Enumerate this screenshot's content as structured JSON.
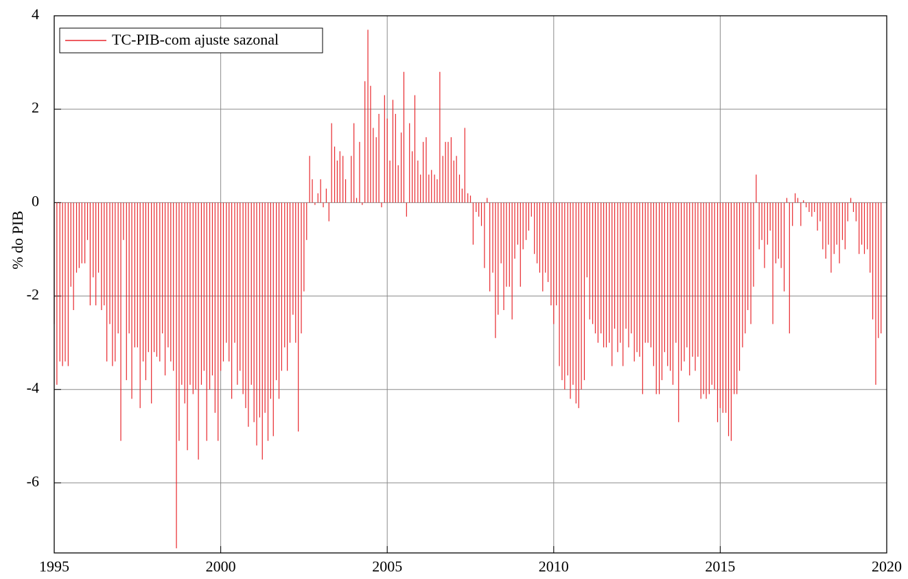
{
  "chart_data": {
    "type": "bar",
    "ylabel": "% do PIB",
    "x": [
      1995,
      1995.08,
      1995.17,
      1995.25,
      1995.33,
      1995.42,
      1995.5,
      1995.58,
      1995.67,
      1995.75,
      1995.83,
      1995.92,
      1996,
      1996.08,
      1996.17,
      1996.25,
      1996.33,
      1996.42,
      1996.5,
      1996.58,
      1996.67,
      1996.75,
      1996.83,
      1996.92,
      1997,
      1997.08,
      1997.17,
      1997.25,
      1997.33,
      1997.42,
      1997.5,
      1997.58,
      1997.67,
      1997.75,
      1997.83,
      1997.92,
      1998,
      1998.08,
      1998.17,
      1998.25,
      1998.33,
      1998.42,
      1998.5,
      1998.58,
      1998.67,
      1998.75,
      1998.83,
      1998.92,
      1999,
      1999.08,
      1999.17,
      1999.25,
      1999.33,
      1999.42,
      1999.5,
      1999.58,
      1999.67,
      1999.75,
      1999.83,
      1999.92,
      2000,
      2000.08,
      2000.17,
      2000.25,
      2000.33,
      2000.42,
      2000.5,
      2000.58,
      2000.67,
      2000.75,
      2000.83,
      2000.92,
      2001,
      2001.08,
      2001.17,
      2001.25,
      2001.33,
      2001.42,
      2001.5,
      2001.58,
      2001.67,
      2001.75,
      2001.83,
      2001.92,
      2002,
      2002.08,
      2002.17,
      2002.25,
      2002.33,
      2002.42,
      2002.5,
      2002.58,
      2002.67,
      2002.75,
      2002.83,
      2002.92,
      2003,
      2003.08,
      2003.17,
      2003.25,
      2003.33,
      2003.42,
      2003.5,
      2003.58,
      2003.67,
      2003.75,
      2003.83,
      2003.92,
      2004,
      2004.08,
      2004.17,
      2004.25,
      2004.33,
      2004.42,
      2004.5,
      2004.58,
      2004.67,
      2004.75,
      2004.83,
      2004.92,
      2005,
      2005.08,
      2005.17,
      2005.25,
      2005.33,
      2005.42,
      2005.5,
      2005.58,
      2005.67,
      2005.75,
      2005.83,
      2005.92,
      2006,
      2006.08,
      2006.17,
      2006.25,
      2006.33,
      2006.42,
      2006.5,
      2006.58,
      2006.67,
      2006.75,
      2006.83,
      2006.92,
      2007,
      2007.08,
      2007.17,
      2007.25,
      2007.33,
      2007.42,
      2007.5,
      2007.58,
      2007.67,
      2007.75,
      2007.83,
      2007.92,
      2008,
      2008.08,
      2008.17,
      2008.25,
      2008.33,
      2008.42,
      2008.5,
      2008.58,
      2008.67,
      2008.75,
      2008.83,
      2008.92,
      2009,
      2009.08,
      2009.17,
      2009.25,
      2009.33,
      2009.42,
      2009.5,
      2009.58,
      2009.67,
      2009.75,
      2009.83,
      2009.92,
      2010,
      2010.08,
      2010.17,
      2010.25,
      2010.33,
      2010.42,
      2010.5,
      2010.58,
      2010.67,
      2010.75,
      2010.83,
      2010.92,
      2011,
      2011.08,
      2011.17,
      2011.25,
      2011.33,
      2011.42,
      2011.5,
      2011.58,
      2011.67,
      2011.75,
      2011.83,
      2011.92,
      2012,
      2012.08,
      2012.17,
      2012.25,
      2012.33,
      2012.42,
      2012.5,
      2012.58,
      2012.67,
      2012.75,
      2012.83,
      2012.92,
      2013,
      2013.08,
      2013.17,
      2013.25,
      2013.33,
      2013.42,
      2013.5,
      2013.58,
      2013.67,
      2013.75,
      2013.83,
      2013.92,
      2014,
      2014.08,
      2014.17,
      2014.25,
      2014.33,
      2014.42,
      2014.5,
      2014.58,
      2014.67,
      2014.75,
      2014.83,
      2014.92,
      2015,
      2015.08,
      2015.17,
      2015.25,
      2015.33,
      2015.42,
      2015.5,
      2015.58,
      2015.67,
      2015.75,
      2015.83,
      2015.92,
      2016,
      2016.08,
      2016.17,
      2016.25,
      2016.33,
      2016.42,
      2016.5,
      2016.58,
      2016.67,
      2016.75,
      2016.83,
      2016.92,
      2017,
      2017.08,
      2017.17,
      2017.25,
      2017.33,
      2017.42,
      2017.5,
      2017.58,
      2017.67,
      2017.75,
      2017.83,
      2017.92,
      2018,
      2018.08,
      2018.17,
      2018.25,
      2018.33,
      2018.42,
      2018.5,
      2018.58,
      2018.67,
      2018.75,
      2018.83,
      2018.92,
      2019,
      2019.08,
      2019.17,
      2019.25,
      2019.33,
      2019.42,
      2019.5,
      2019.58,
      2019.67,
      2019.75,
      2019.83
    ],
    "series": [
      {
        "name": "TC-PIB-com ajuste sazonal",
        "color": "#e8262b",
        "values": [
          -2.6,
          -3.9,
          -3.4,
          -3.5,
          -3.4,
          -3.5,
          -1.8,
          -2.3,
          -1.5,
          -1.4,
          -1.3,
          -1.3,
          -0.8,
          -2.2,
          -1.6,
          -2.2,
          -1.5,
          -2.3,
          -2.2,
          -3.4,
          -2.6,
          -3.5,
          -3.4,
          -2.8,
          -5.1,
          -0.8,
          -3.8,
          -2.8,
          -4.2,
          -3.1,
          -3.1,
          -4.4,
          -3.4,
          -3.8,
          -3.2,
          -4.3,
          -3.2,
          -3.3,
          -3.4,
          -2.8,
          -3.7,
          -3.1,
          -3.4,
          -3.6,
          -7.4,
          -5.1,
          -3.9,
          -4.3,
          -5.3,
          -3.9,
          -4.1,
          -4.0,
          -5.5,
          -3.9,
          -3.6,
          -5.1,
          -4.0,
          -3.7,
          -4.5,
          -5.1,
          -3.6,
          -3.4,
          -3.0,
          -3.4,
          -4.2,
          -3.0,
          -3.9,
          -3.6,
          -4.1,
          -4.4,
          -4.8,
          -3.9,
          -4.7,
          -5.2,
          -4.6,
          -5.5,
          -4.5,
          -5.1,
          -4.2,
          -5.0,
          -3.8,
          -4.2,
          -3.6,
          -3.1,
          -3.6,
          -3.0,
          -2.4,
          -3.0,
          -4.9,
          -2.8,
          -1.9,
          -0.8,
          1.0,
          0.5,
          -0.05,
          0.2,
          0.5,
          -0.1,
          0.3,
          -0.4,
          1.7,
          1.2,
          0.9,
          1.1,
          1.0,
          0.5,
          0.0,
          1.0,
          1.7,
          0.1,
          1.3,
          -0.05,
          2.6,
          3.7,
          2.5,
          1.6,
          1.4,
          1.9,
          -0.1,
          2.3,
          1.8,
          0.9,
          2.2,
          1.9,
          0.8,
          1.5,
          2.8,
          -0.3,
          1.7,
          1.1,
          2.3,
          0.9,
          0.6,
          1.3,
          1.4,
          0.6,
          0.7,
          0.6,
          0.5,
          2.8,
          1.0,
          1.3,
          1.3,
          1.4,
          0.9,
          1.0,
          0.6,
          0.3,
          1.6,
          0.2,
          0.15,
          -0.9,
          -0.2,
          -0.3,
          -0.5,
          -1.4,
          0.1,
          -1.9,
          -1.5,
          -2.9,
          -2.4,
          -1.3,
          -2.3,
          -1.8,
          -1.8,
          -2.5,
          -1.2,
          -0.9,
          -1.8,
          -1.0,
          -0.8,
          -0.6,
          -0.3,
          -1.1,
          -1.3,
          -1.5,
          -1.9,
          -1.5,
          -1.7,
          -2.2,
          -2.6,
          -2.2,
          -3.5,
          -3.8,
          -4.0,
          -3.7,
          -4.2,
          -3.9,
          -4.3,
          -4.4,
          -4.0,
          -3.8,
          -1.6,
          -2.5,
          -2.6,
          -2.8,
          -3.0,
          -2.8,
          -3.1,
          -3.1,
          -3.0,
          -3.5,
          -2.7,
          -3.2,
          -3.0,
          -3.5,
          -2.7,
          -3.1,
          -2.8,
          -3.4,
          -3.2,
          -3.3,
          -4.1,
          -3.0,
          -3.0,
          -3.1,
          -3.5,
          -4.1,
          -4.1,
          -3.8,
          -3.2,
          -3.5,
          -3.6,
          -3.9,
          -3.0,
          -4.7,
          -3.6,
          -3.4,
          -3.1,
          -3.7,
          -3.3,
          -3.6,
          -3.3,
          -4.2,
          -4.1,
          -4.2,
          -4.1,
          -3.9,
          -4.0,
          -4.7,
          -4.4,
          -4.5,
          -4.5,
          -5.0,
          -5.1,
          -4.1,
          -4.1,
          -3.6,
          -3.1,
          -2.8,
          -2.3,
          -2.6,
          -1.8,
          0.6,
          -1.0,
          -0.8,
          -1.4,
          -0.9,
          -0.6,
          -2.6,
          -1.3,
          -1.2,
          -1.4,
          -1.9,
          0.1,
          -2.8,
          -0.5,
          0.2,
          0.1,
          -0.5,
          0.05,
          -0.1,
          -0.2,
          -0.3,
          -0.2,
          -0.6,
          -0.4,
          -1.0,
          -1.2,
          -0.9,
          -1.5,
          -1.1,
          -0.9,
          -1.3,
          -0.8,
          -1.0,
          -0.4,
          0.1,
          -0.2,
          -0.4,
          -1.1,
          -0.9,
          -1.1,
          -1.0,
          -1.5,
          -2.5,
          -3.9,
          -2.9,
          -2.8
        ]
      }
    ],
    "xlim": [
      1995,
      2020
    ],
    "xticks": [
      1995,
      2000,
      2005,
      2010,
      2015,
      2020
    ],
    "ylim": [
      -7.5,
      4
    ],
    "yticks": [
      -6,
      -4,
      -2,
      0,
      2,
      4
    ],
    "grid": true,
    "legend": "upper left"
  }
}
